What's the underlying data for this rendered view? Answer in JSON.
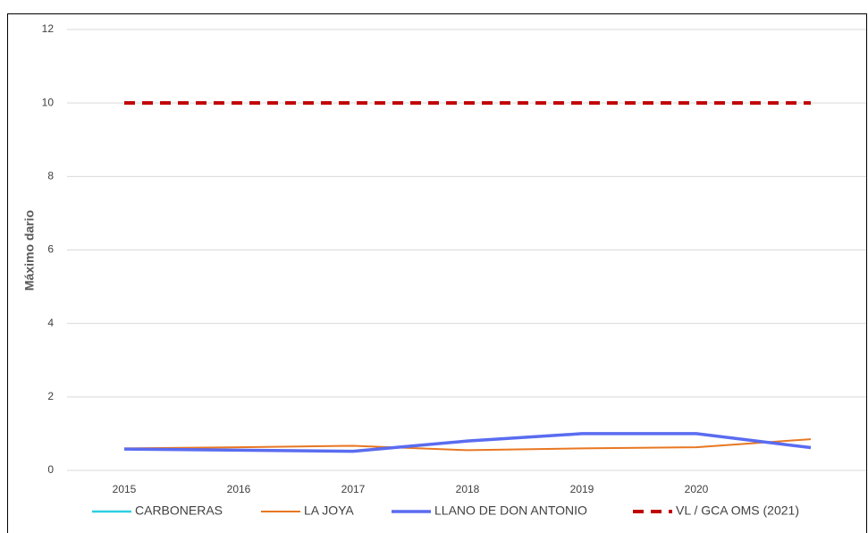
{
  "chart_data": {
    "type": "line",
    "y_label": "Máximo dario",
    "categories": [
      "2015",
      "2016",
      "2017",
      "2018",
      "2019",
      "2020",
      null
    ],
    "series": [
      {
        "name": "CARBONERAS",
        "color": "#2ecfe0",
        "width": 2.5,
        "dash": false,
        "values": [
          null,
          null,
          null,
          null,
          null,
          null,
          null
        ]
      },
      {
        "name": "LA JOYA",
        "color": "#e87722",
        "width": 2,
        "dash": false,
        "values": [
          0.6,
          0.63,
          0.67,
          0.55,
          0.6,
          0.63,
          0.85
        ]
      },
      {
        "name": "LLANO DE DON ANTONIO",
        "color": "#5a6cf0",
        "width": 3.5,
        "dash": false,
        "values": [
          0.58,
          0.55,
          0.52,
          0.8,
          1.0,
          1.0,
          0.62
        ]
      },
      {
        "name": "VL / GCA OMS (2021)",
        "color": "#c00000",
        "width": 4,
        "dash": true,
        "values": [
          10,
          10,
          10,
          10,
          10,
          10,
          10
        ]
      }
    ],
    "ylim": [
      0,
      12
    ],
    "yticks": [
      0,
      2,
      4,
      6,
      8,
      10,
      12
    ],
    "grid": true
  }
}
